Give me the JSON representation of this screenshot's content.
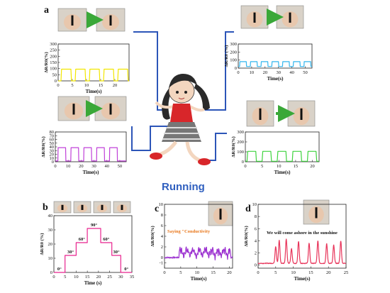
{
  "figure": {
    "center_caption": "Running",
    "colors": {
      "connector": "#2c55b8",
      "running": "#2f5fbf",
      "skin": "#f3d6bf",
      "shirt": "#d8262a",
      "shoe": "#d8262a"
    }
  },
  "panels": [
    {
      "id": "a",
      "label": "a",
      "caption": "",
      "photo": "neck-bend-photo",
      "chart_data": {
        "type": "line",
        "xlabel": "Time(s)",
        "ylabel": "ΔR/R0(%)",
        "xlim": [
          0,
          25
        ],
        "ylim": [
          0,
          300
        ],
        "xticks": [
          0,
          5,
          10,
          15,
          20
        ],
        "yticks": [
          0,
          50,
          100,
          150,
          200,
          250,
          300
        ],
        "color": "#f2e600",
        "pulses": {
          "base": 0,
          "high": 95,
          "period": 5,
          "on": 3.5,
          "start": 1,
          "end": 23
        }
      }
    },
    {
      "id": "a-wrist",
      "label": "",
      "caption": "",
      "photo": "wrist-bend-photo",
      "chart_data": {
        "type": "line",
        "xlabel": "Time(s)",
        "ylabel": "ΔR/R0(%)",
        "xlim": [
          0,
          55
        ],
        "ylim": [
          0,
          80
        ],
        "xticks": [
          0,
          10,
          20,
          30,
          40,
          50
        ],
        "yticks": [
          0,
          10,
          20,
          30,
          40,
          50,
          60,
          70,
          80
        ],
        "color": "#c040d8",
        "pulses": {
          "base": 2,
          "high": 38,
          "period": 10,
          "on": 6,
          "start": 2,
          "end": 52
        }
      }
    },
    {
      "id": "a-elbow",
      "label": "",
      "caption": "",
      "photo": "elbow-bend-photo",
      "chart_data": {
        "type": "line",
        "xlabel": "Time(s)",
        "ylabel": "ΔR/R0 (%)",
        "xlim": [
          0,
          55
        ],
        "ylim": [
          0,
          300
        ],
        "xticks": [
          0,
          10,
          20,
          30,
          40,
          50
        ],
        "yticks": [
          0,
          100,
          200,
          300
        ],
        "color": "#33b6ee",
        "pulses": {
          "base": 20,
          "high": 80,
          "period": 8,
          "on": 5,
          "start": 1,
          "end": 54
        }
      }
    },
    {
      "id": "a-knee",
      "label": "",
      "caption": "",
      "photo": "knee-bend-photo",
      "chart_data": {
        "type": "line",
        "xlabel": "Time(s)",
        "ylabel": "ΔR/R0(%)",
        "xlim": [
          0,
          22
        ],
        "ylim": [
          0,
          300
        ],
        "xticks": [
          0,
          5,
          10,
          15,
          20
        ],
        "yticks": [
          0,
          100,
          200,
          300
        ],
        "color": "#3ed33e",
        "pulses": {
          "base": 5,
          "high": 105,
          "period": 4.5,
          "on": 2.6,
          "start": 0.5,
          "end": 21
        }
      }
    },
    {
      "id": "b",
      "label": "b",
      "caption": "",
      "photo": "finger-bend-photo",
      "chart_data": {
        "type": "line",
        "xlabel": "Time (s)",
        "ylabel": "ΔR/R0 (%)",
        "xlim": [
          0,
          35
        ],
        "ylim": [
          0,
          40
        ],
        "xticks": [
          0,
          5,
          10,
          15,
          20,
          25,
          30,
          35
        ],
        "yticks": [
          0,
          10,
          20,
          30,
          40
        ],
        "color": "#e8238e",
        "steps": [
          [
            0,
            0
          ],
          [
            5,
            0
          ],
          [
            5,
            12
          ],
          [
            10,
            12
          ],
          [
            10,
            21
          ],
          [
            15,
            21
          ],
          [
            15,
            31
          ],
          [
            21,
            31
          ],
          [
            21,
            21
          ],
          [
            26,
            21
          ],
          [
            26,
            12
          ],
          [
            30,
            12
          ],
          [
            30,
            0
          ],
          [
            35,
            0
          ]
        ],
        "annotations": [
          "0°",
          "30°",
          "60°",
          "90°",
          "60°",
          "30°",
          "0°"
        ]
      }
    },
    {
      "id": "c",
      "label": "c",
      "caption": "Saying \"Conductivity",
      "photo": "throat-speaking-photo",
      "chart_data": {
        "type": "line",
        "xlabel": "Time(s)",
        "ylabel": "ΔR/R0(%)",
        "xlim": [
          0,
          21
        ],
        "ylim": [
          -2,
          10
        ],
        "xticks": [
          0,
          5,
          10,
          15,
          20
        ],
        "yticks": [
          -1,
          0,
          2,
          4,
          6,
          8,
          10
        ],
        "color": "#9b30d0",
        "signal": "speech-burst"
      }
    },
    {
      "id": "d",
      "label": "d",
      "caption": "We will come ashore in the sunshine",
      "photo": "throat-singing-photo",
      "chart_data": {
        "type": "line",
        "xlabel": "Time(s)",
        "ylabel": "ΔR/R0(%)",
        "xlim": [
          0,
          25
        ],
        "ylim": [
          -0.5,
          10
        ],
        "xticks": [
          0,
          5,
          10,
          15,
          20,
          25
        ],
        "yticks": [
          0,
          2,
          4,
          6,
          8,
          10
        ],
        "color": "#e8345a",
        "signal": "singing-peaks"
      }
    }
  ]
}
